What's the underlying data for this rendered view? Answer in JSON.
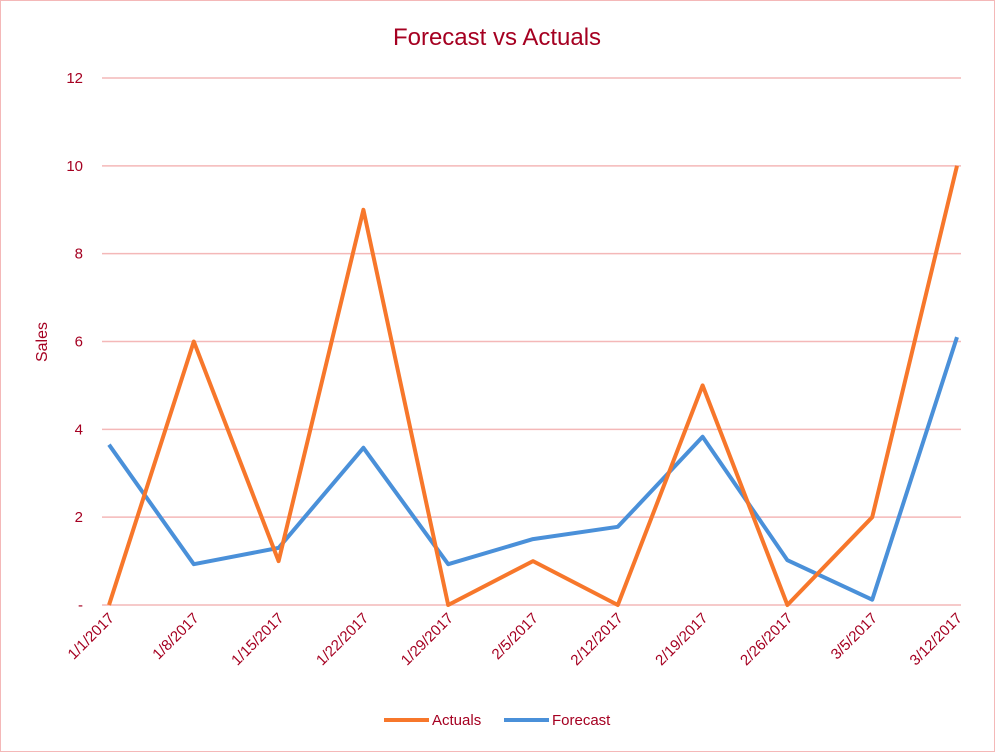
{
  "chart_data": {
    "type": "line",
    "title": "Forecast vs Actuals",
    "xlabel": "",
    "ylabel": "Sales",
    "categories": [
      "1/1/2017",
      "1/8/2017",
      "1/15/2017",
      "1/22/2017",
      "1/29/2017",
      "2/5/2017",
      "2/12/2017",
      "2/19/2017",
      "2/26/2017",
      "3/5/2017",
      "3/12/2017"
    ],
    "series": [
      {
        "name": "Actuals",
        "color": "#f7772b",
        "values": [
          0,
          6,
          1,
          9,
          0,
          1,
          0,
          5,
          0,
          2,
          10
        ]
      },
      {
        "name": "Forecast",
        "color": "#4a90d9",
        "values": [
          3.65,
          0.93,
          1.3,
          3.58,
          0.93,
          1.5,
          1.78,
          3.83,
          1.02,
          0.12,
          6.1
        ]
      }
    ],
    "ylim": [
      0,
      12
    ],
    "yticks": [
      0,
      2,
      4,
      6,
      8,
      10,
      12
    ],
    "ytick_labels": [
      "-",
      "2",
      "4",
      "6",
      "8",
      "10",
      "12"
    ],
    "grid": true,
    "legend": "bottom",
    "colors": {
      "text": "#a50021",
      "grid": "#f4b8b8",
      "border": "#f4b8b8"
    }
  }
}
